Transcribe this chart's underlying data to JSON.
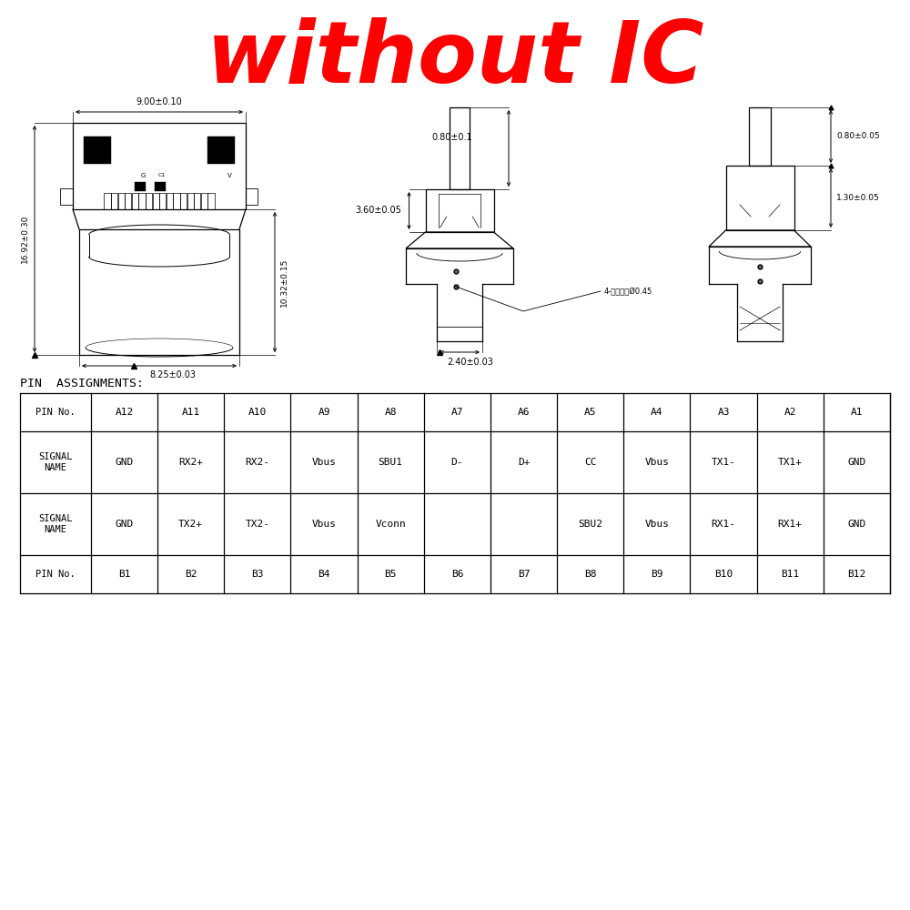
{
  "title": "without IC",
  "title_color": "#FF0000",
  "title_fontsize": 68,
  "bg_color": "#FFFFFF",
  "pin_assignments_label": "PIN  ASSIGNMENTS:",
  "table_headers_top": [
    "PIN No.",
    "A12",
    "A11",
    "A10",
    "A9",
    "A8",
    "A7",
    "A6",
    "A5",
    "A4",
    "A3",
    "A2",
    "A1"
  ],
  "table_signal_a": [
    "SIGNAL\nNAME",
    "GND",
    "RX2+",
    "RX2-",
    "Vbus",
    "SBU1",
    "D-",
    "D+",
    "CC",
    "Vbus",
    "TX1-",
    "TX1+",
    "GND"
  ],
  "table_signal_b": [
    "SIGNAL\nNAME",
    "GND",
    "TX2+",
    "TX2-",
    "Vbus",
    "Vconn",
    "",
    "",
    "SBU2",
    "Vbus",
    "RX1-",
    "RX1+",
    "GND"
  ],
  "table_headers_bot": [
    "PIN No.",
    "B1",
    "B2",
    "B3",
    "B4",
    "B5",
    "B6",
    "B7",
    "B8",
    "B9",
    "B10",
    "B11",
    "B12"
  ],
  "dim_top_width": "9.00±0.10",
  "dim_left_height": "16.92±0.30",
  "dim_right_height": "10.32±0.15",
  "dim_bottom_width": "8.25±0.03",
  "dim_center_top": "0.80±0.1",
  "dim_center_mid": "3.60±0.05",
  "dim_center_bot": "2.40±0.03",
  "dim_right_top": "0.80±0.05",
  "dim_right_bot": "1.30±0.05",
  "annotation": "4-激光焊点Ø0.45"
}
